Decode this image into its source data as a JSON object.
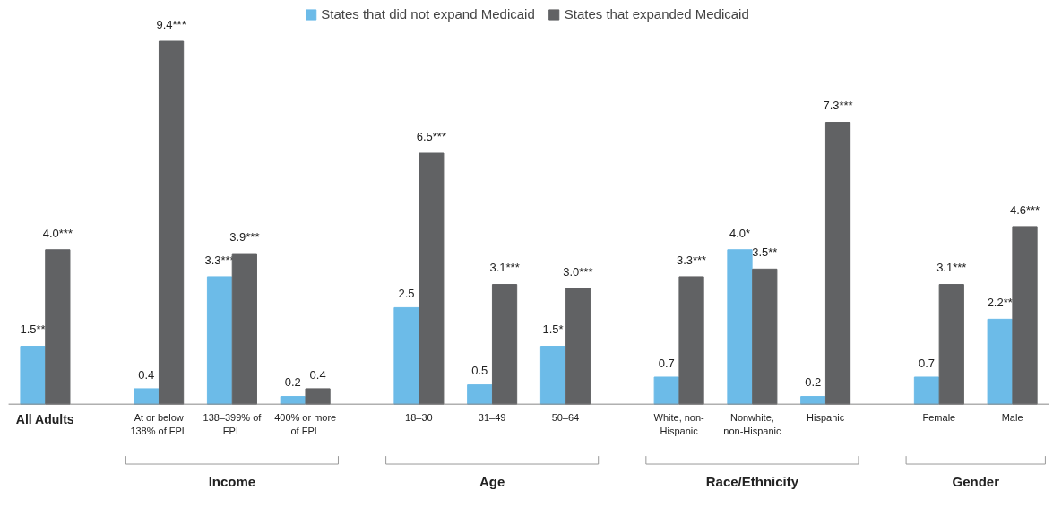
{
  "chart_data": {
    "type": "bar",
    "categories": [
      "All Adults",
      "At or below 138% of FPL",
      "138–399% of FPL",
      "400% or more of FPL",
      "18–30",
      "31–49",
      "50–64",
      "White, non-Hispanic",
      "Nonwhite, non-Hispanic",
      "Hispanic",
      "Female",
      "Male"
    ],
    "series": [
      {
        "name": "States that did not expand Medicaid",
        "color": "#6cbbe8",
        "values": [
          1.5,
          0.4,
          3.3,
          0.2,
          2.5,
          0.5,
          1.5,
          0.7,
          4.0,
          0.2,
          0.7,
          2.2
        ],
        "value_labels": [
          "1.5**",
          "0.4",
          "3.3***",
          "0.2",
          "2.5",
          "0.5",
          "1.5*",
          "0.7",
          "4.0*",
          "0.2",
          "0.7",
          "2.2**"
        ]
      },
      {
        "name": "States that expanded Medicaid",
        "color": "#616264",
        "values": [
          4.0,
          9.4,
          3.9,
          0.4,
          6.5,
          3.1,
          3.0,
          3.3,
          3.5,
          7.3,
          3.1,
          4.6
        ],
        "value_labels": [
          "4.0***",
          "9.4***",
          "3.9***",
          "0.4",
          "6.5***",
          "3.1***",
          "3.0***",
          "3.3***",
          "3.5**",
          "7.3***",
          "3.1***",
          "4.6***"
        ]
      }
    ],
    "annotations": [
      "Income",
      "Age",
      "Race/Ethnicity",
      "Gender"
    ],
    "legend": "top",
    "grid": false
  }
}
